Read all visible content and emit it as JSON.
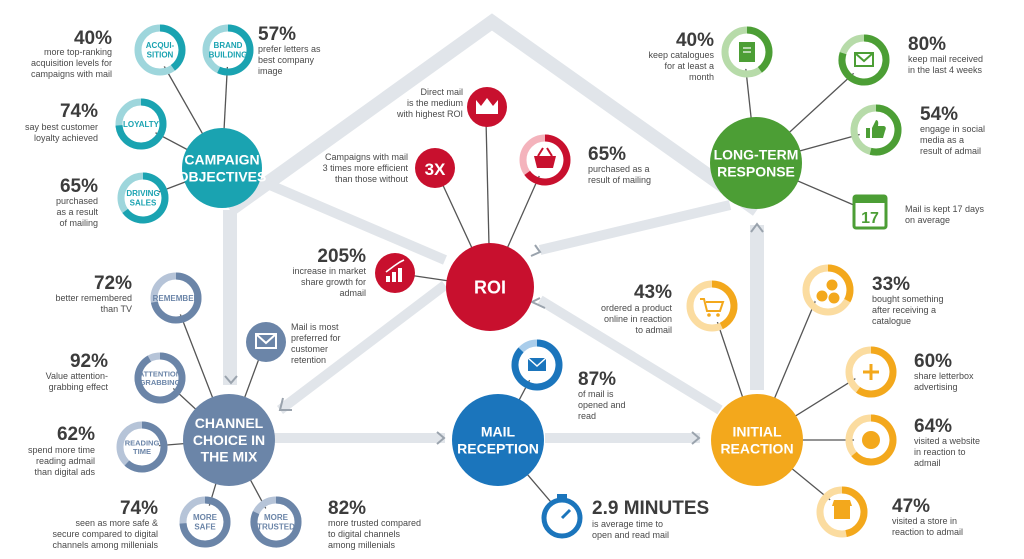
{
  "colors": {
    "teal": "#1aa3b1",
    "teal_light": "#9ed6dc",
    "slate": "#6b85a8",
    "slate_light": "#b6c4d8",
    "red": "#c8102e",
    "red_light": "#f4b3bc",
    "blue": "#1b75bc",
    "blue_light": "#a9cdeb",
    "green": "#4c9e35",
    "green_light": "#b7dba9",
    "orange": "#f3a81c",
    "orange_light": "#fbdca0",
    "frame": "#dde2e8",
    "text": "#4a4a4a",
    "pct": "#3c3c3c"
  },
  "hubs": {
    "campaign": [
      "CAMPAIGN",
      "OBJECTIVES"
    ],
    "channel": [
      "CHANNEL",
      "CHOICE IN",
      "THE MIX"
    ],
    "roi": [
      "ROI"
    ],
    "mail": [
      "MAIL",
      "RECEPTION"
    ],
    "longterm": [
      "LONG-TERM",
      "RESPONSE"
    ],
    "initial": [
      "INITIAL",
      "REACTION"
    ]
  },
  "campaign": {
    "acquisition": {
      "label": [
        "ACQUI-",
        "SITION"
      ],
      "pct": "40%",
      "text": [
        "more top-ranking",
        "acquisition levels for",
        "campaigns with mail"
      ],
      "fill": 0.4
    },
    "brand": {
      "label": [
        "BRAND",
        "BUILDING"
      ],
      "pct": "57%",
      "text": [
        "prefer letters as",
        "best company",
        "image"
      ],
      "fill": 0.57
    },
    "loyalty": {
      "label": [
        "LOYALTY"
      ],
      "pct": "74%",
      "text": [
        "say best customer",
        "loyalty achieved"
      ],
      "fill": 0.74
    },
    "driving": {
      "label": [
        "DRIVING",
        "SALES"
      ],
      "pct": "65%",
      "text": [
        "purchased",
        "as a result of",
        "of mailing"
      ],
      "fill": 0.65
    }
  },
  "channel": {
    "remember": {
      "label": [
        "REMEMBER"
      ],
      "pct": "72%",
      "text": [
        "better remembered",
        "than TV"
      ],
      "fill": 0.72
    },
    "attention": {
      "label": [
        "ATTENTION",
        "GRABBING"
      ],
      "pct": "92%",
      "text": [
        "Value attention-",
        "grabbing effect"
      ],
      "fill": 0.92
    },
    "reading": {
      "label": [
        "READING",
        "TIME"
      ],
      "pct": "62%",
      "text": [
        "spend more time",
        "reading admail",
        "than digital ads"
      ],
      "fill": 0.62
    },
    "safe": {
      "label": [
        "MORE",
        "SAFE"
      ],
      "pct": "74%",
      "text": [
        "seen as more safe &",
        "secure compared to digital",
        "channels among millenials"
      ],
      "fill": 0.74
    },
    "trusted": {
      "label": [
        "MORE",
        "TRUSTED"
      ],
      "pct": "82%",
      "text": [
        "more trusted compared",
        "to digital channels",
        "among millenials"
      ],
      "fill": 0.82
    },
    "retention": {
      "text": [
        "Mail is most",
        "preferred for",
        "customer",
        "retention"
      ]
    }
  },
  "roi": {
    "crown": {
      "text": [
        "Direct mail",
        "is the medium",
        "with highest ROI"
      ]
    },
    "threex": {
      "label": "3X",
      "text": [
        "Campaigns with mail",
        "3 times more efficient",
        "than those without"
      ]
    },
    "basket": {
      "pct": "65%",
      "text": [
        "purchased as a",
        "result of mailing"
      ],
      "fill": 0.65
    },
    "growth": {
      "pct": "205%",
      "text": [
        "increase in market",
        "share growth for",
        "admail"
      ]
    }
  },
  "mail": {
    "opened": {
      "pct": "87%",
      "text": [
        "of mail is",
        "opened and",
        "read"
      ],
      "fill": 0.87
    },
    "time": {
      "pct": "2.9 MINUTES",
      "text": [
        "is average time to",
        "open and read mail"
      ]
    }
  },
  "longterm": {
    "catalogues": {
      "pct": "40%",
      "text": [
        "keep catalogues",
        "for at least a",
        "month"
      ],
      "fill": 0.4
    },
    "weeks": {
      "pct": "80%",
      "text": [
        "keep mail received",
        "in the last 4 weeks"
      ],
      "fill": 0.8
    },
    "social": {
      "pct": "54%",
      "text": [
        "engage in social",
        "media as a",
        "result of admail"
      ],
      "fill": 0.54
    },
    "kept": {
      "label": "17",
      "text": [
        "Mail is kept 17 days",
        "on average"
      ]
    }
  },
  "initial": {
    "online": {
      "pct": "43%",
      "text": [
        "ordered a product",
        "online in reaction",
        "to admail"
      ],
      "fill": 0.43
    },
    "catalogue": {
      "pct": "33%",
      "text": [
        "bought something",
        "after receiving a",
        "catalogue"
      ],
      "fill": 0.33
    },
    "letterbox": {
      "pct": "60%",
      "text": [
        "share letterbox",
        "advertising"
      ],
      "fill": 0.6
    },
    "website": {
      "pct": "64%",
      "text": [
        "visited a website",
        "in reaction to",
        "admail"
      ],
      "fill": 0.64
    },
    "store": {
      "pct": "47%",
      "text": [
        "visited a store in",
        "reaction to admail"
      ],
      "fill": 0.47
    }
  }
}
